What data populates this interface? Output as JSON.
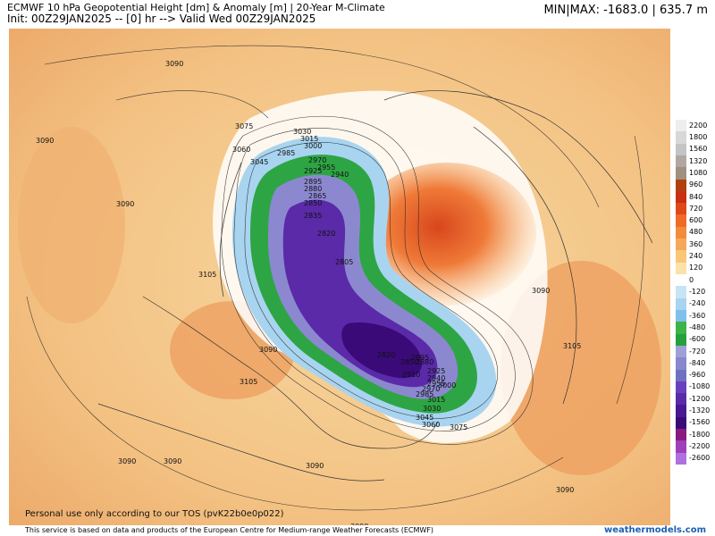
{
  "header": {
    "title": "ECMWF 10 hPa Geopotential Height [dm] & Anomaly [m] | 20-Year M-Climate",
    "init": "Init: 00Z29JAN2025 -- [0] hr --> Valid Wed 00Z29JAN2025",
    "minmax": "MIN|MAX: -1683.0 | 635.7 m"
  },
  "map": {
    "contour_labels": [
      "3090",
      "3090",
      "3090",
      "3105",
      "3075",
      "3060",
      "3045",
      "3030",
      "3015",
      "3000",
      "2985",
      "2970",
      "2955",
      "2940",
      "2925",
      "2895",
      "2880",
      "2865",
      "2850",
      "2835",
      "2820",
      "2805",
      "3090",
      "3105",
      "3090",
      "3105",
      "3090",
      "3090",
      "3090",
      "3090",
      "3090",
      "2910",
      "2925",
      "2940",
      "2955",
      "2970",
      "2985",
      "3000",
      "3015",
      "3030",
      "3045",
      "3060",
      "3075",
      "2895",
      "2880",
      "2850",
      "2820"
    ]
  },
  "legend": {
    "levels": [
      "2200",
      "1800",
      "1560",
      "1320",
      "1080",
      "960",
      "840",
      "720",
      "600",
      "480",
      "360",
      "240",
      "120",
      "0",
      "-120",
      "-240",
      "-360",
      "-480",
      "-600",
      "-720",
      "-840",
      "-960",
      "-1080",
      "-1200",
      "-1320",
      "-1560",
      "-1800",
      "-2200",
      "-2600"
    ],
    "colors": [
      "#eeeeee",
      "#d8d8d8",
      "#c4c4c4",
      "#b0a8a0",
      "#a09080",
      "#b04010",
      "#c83010",
      "#e04818",
      "#f06a28",
      "#f28c3c",
      "#f5a85a",
      "#f8c878",
      "#fae2a8",
      "#ffffff",
      "#c8e4f4",
      "#a8d4f0",
      "#80c0ec",
      "#3cb44a",
      "#26a03c",
      "#a0a0d8",
      "#8888cc",
      "#7070c0",
      "#6a40c0",
      "#5a2aa8",
      "#4a1890",
      "#3a0a78",
      "#8a1a80",
      "#a040b8",
      "#b070e0"
    ]
  },
  "footer": {
    "tos": "Personal use only according to our TOS (pvK22b0e0p022)",
    "credit": "This service is based on data and products of the European Centre for Medium-range Weather Forecasts (ECMWF)",
    "brand": "weathermodels.com"
  }
}
